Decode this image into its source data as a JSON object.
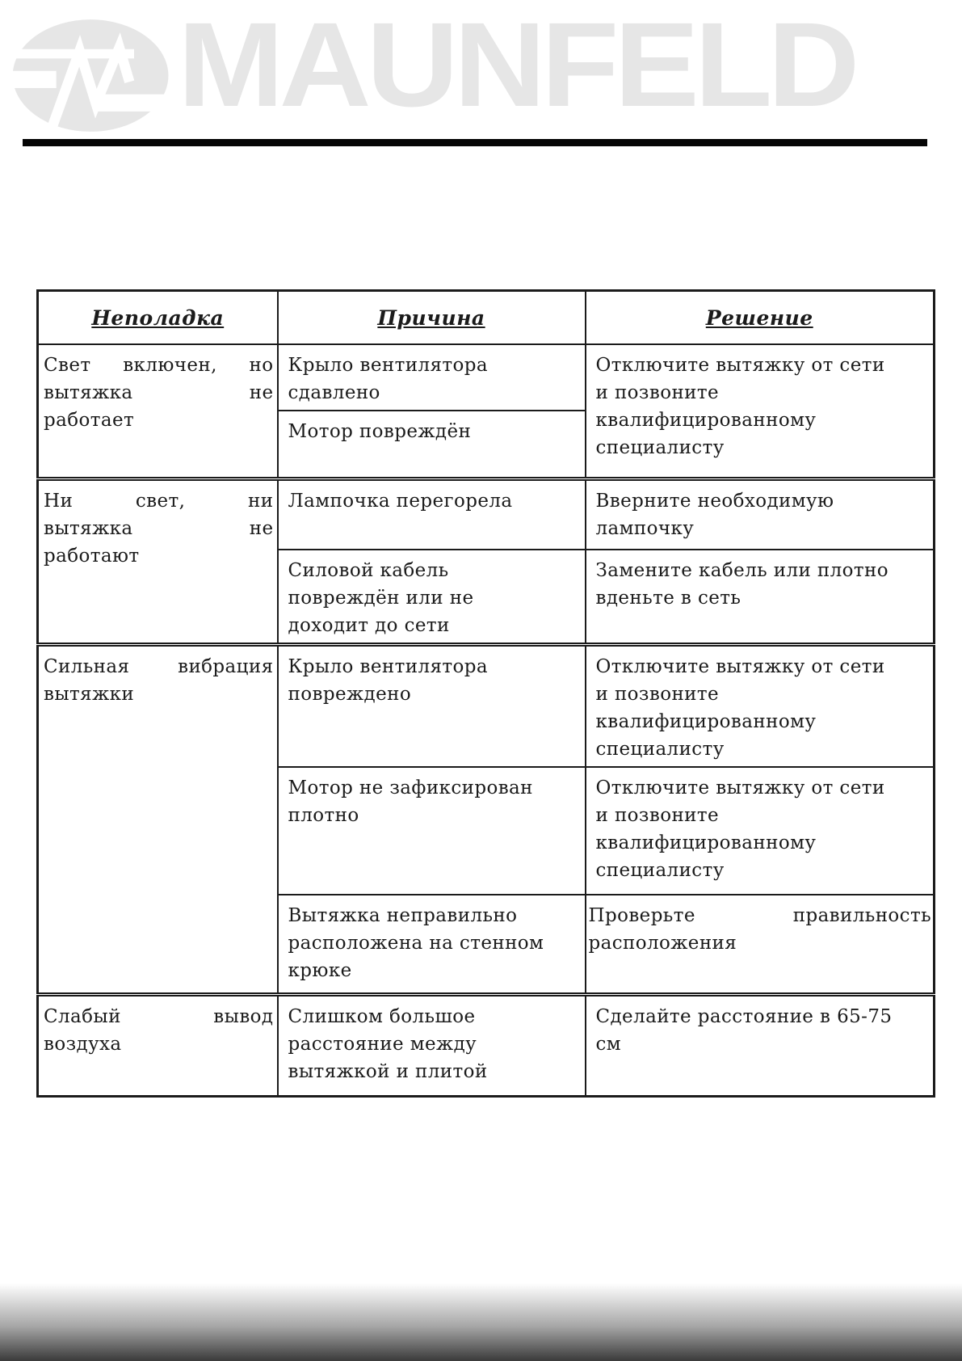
{
  "brand": {
    "logo_text": "MAUNFELD",
    "logo_mark_icon": "maunfeld-oval-m-icon"
  },
  "colors": {
    "logo_gray": "#e6e6e6",
    "text": "#1b1b1b",
    "rule_black": "#050505",
    "footer_gradient_start": "#ffffff",
    "footer_gradient_end": "#3a3a3a"
  },
  "table": {
    "headers": {
      "problem": "Неполадка",
      "cause": "Причина",
      "solution": "Решение"
    },
    "cells": {
      "r1_problem": {
        "justify": true,
        "lines": [
          "Свет включен, но",
          "вытяжка не",
          "работает"
        ]
      },
      "r1_cause_a": {
        "lines": [
          "Крыло вентилятора",
          "сдавлено"
        ]
      },
      "r1_cause_b": {
        "lines": [
          "Мотор повреждён"
        ]
      },
      "r1_solution": {
        "lines": [
          "Отключите вытяжку от сети",
          "и позвоните",
          "квалифицированному",
          "специалисту"
        ]
      },
      "r2_problem": {
        "justify": true,
        "lines": [
          "Ни свет, ни",
          "вытяжка не",
          "работают"
        ]
      },
      "r2_cause_a": {
        "lines": [
          "Лампочка перегорела"
        ]
      },
      "r2_solution_a": {
        "lines": [
          "Вверните необходимую",
          "лампочку"
        ]
      },
      "r2_cause_b": {
        "lines": [
          "Силовой кабель",
          "повреждён или не",
          "доходит до сети"
        ]
      },
      "r2_solution_b": {
        "lines": [
          "Замените кабель или плотно",
          "вденьте в сеть"
        ]
      },
      "r3_problem": {
        "justify": true,
        "lines": [
          "Сильная вибрация",
          "вытяжки"
        ]
      },
      "r3_cause_a": {
        "lines": [
          "Крыло вентилятора",
          "повреждено"
        ]
      },
      "r3_solution_a": {
        "lines": [
          "Отключите вытяжку от сети",
          "и позвоните",
          "квалифицированному",
          "специалисту"
        ]
      },
      "r3_cause_b": {
        "lines": [
          "Мотор не зафиксирован",
          "плотно"
        ]
      },
      "r3_solution_b": {
        "lines": [
          "Отключите вытяжку от сети",
          "и позвоните",
          "квалифицированному",
          "специалисту"
        ]
      },
      "r3_cause_c": {
        "lines": [
          "Вытяжка неправильно",
          "расположена на стенном",
          "крюке"
        ]
      },
      "r3_solution_c": {
        "justify": true,
        "lines": [
          "Проверьте правильность",
          "расположения"
        ]
      },
      "r4_problem": {
        "justify": true,
        "lines": [
          "Слабый вывод",
          "воздуха"
        ]
      },
      "r4_cause": {
        "lines": [
          "Слишком большое",
          "расстояние между",
          "вытяжкой и плитой"
        ]
      },
      "r4_solution": {
        "lines": [
          "Сделайте расстояние в 65-75",
          "см"
        ]
      }
    }
  }
}
